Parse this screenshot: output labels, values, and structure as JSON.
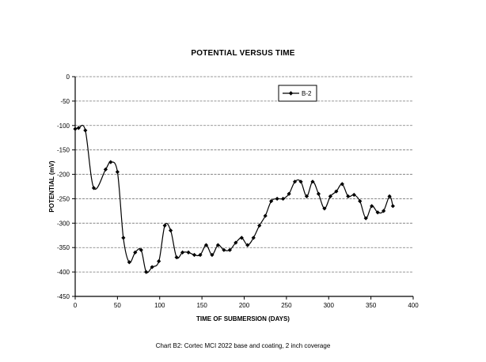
{
  "page": {
    "title": "POTENTIAL VERSUS TIME",
    "caption": "Chart B2: Cortec MCI 2022 base and coating, 2 inch coverage"
  },
  "chart_data": {
    "type": "line",
    "title": "POTENTIAL VERSUS TIME",
    "xlabel": "TIME OF SUBMERSION (DAYS)",
    "ylabel": "POTENTIAL (mV)",
    "xlim": [
      0,
      400
    ],
    "ylim": [
      -450,
      0
    ],
    "xticks": [
      0,
      50,
      100,
      150,
      200,
      250,
      300,
      350,
      400
    ],
    "yticks": [
      0,
      -50,
      -100,
      -150,
      -200,
      -250,
      -300,
      -350,
      -400,
      -450
    ],
    "grid": "horizontal",
    "legend_position": "top-right",
    "series": [
      {
        "name": "B-2",
        "color": "#000000",
        "marker": "diamond",
        "x": [
          0,
          4,
          12,
          22,
          36,
          42,
          50,
          57,
          64,
          71,
          78,
          84,
          91,
          99,
          106,
          113,
          120,
          127,
          134,
          141,
          148,
          155,
          162,
          169,
          176,
          183,
          190,
          197,
          204,
          211,
          218,
          225,
          232,
          239,
          246,
          253,
          260,
          267,
          274,
          281,
          288,
          295,
          302,
          309,
          316,
          323,
          330,
          337,
          344,
          351,
          358,
          365,
          372,
          376
        ],
        "y": [
          -107,
          -105,
          -110,
          -228,
          -190,
          -175,
          -195,
          -330,
          -380,
          -360,
          -355,
          -400,
          -390,
          -378,
          -305,
          -315,
          -370,
          -360,
          -360,
          -365,
          -365,
          -345,
          -365,
          -345,
          -355,
          -355,
          -340,
          -330,
          -345,
          -330,
          -305,
          -285,
          -255,
          -250,
          -250,
          -240,
          -215,
          -215,
          -245,
          -215,
          -240,
          -270,
          -245,
          -235,
          -220,
          -245,
          -242,
          -255,
          -290,
          -265,
          -278,
          -275,
          -245,
          -265
        ]
      }
    ]
  }
}
